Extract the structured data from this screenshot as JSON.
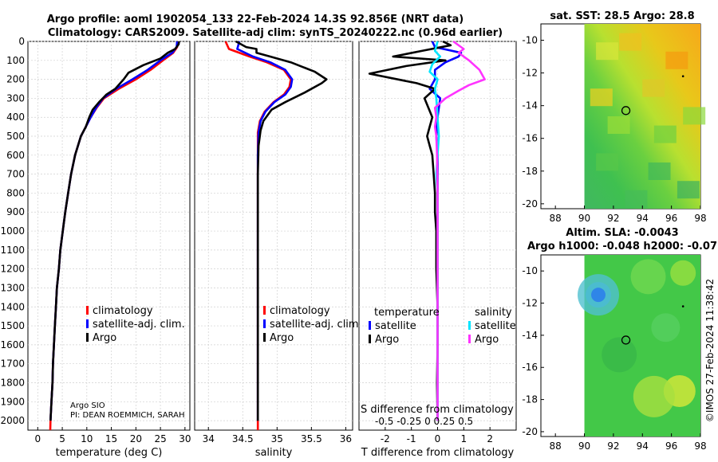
{
  "title_line1": "Argo profile: aoml 1902054_133 22-Feb-2024 14.3S 92.856E (NRT data)",
  "title_line2": "Climatology: CARS2009. Satellite-adj clim: synTS_20240222.nc (0.96d earlier)",
  "map1_title": "sat. SST: 28.5 Argo: 28.8",
  "map2_title1": "Altim. SLA: -0.0043",
  "map2_title2": "Argo h1000: -0.048 h2000: -0.07",
  "credit": "©IMOS 27-Feb-2024 11:38:42",
  "source_label": "Argo SIO",
  "pi_label": "PI: DEAN ROEMMICH, SARAH",
  "colors": {
    "climatology": "#ff0000",
    "satellite": "#0000ff",
    "argo": "#000000",
    "sat_diff_temp": "#0000ff",
    "sat_diff_sal": "#00e5ff",
    "argo_diff_sal": "#ff33ff"
  },
  "map_ticks": {
    "lat": [
      "-10",
      "-12",
      "-14",
      "-16",
      "-18",
      "-20"
    ],
    "lon": [
      "88",
      "90",
      "92",
      "94",
      "96",
      "98"
    ]
  },
  "chart_data": [
    {
      "type": "line",
      "name": "temperature",
      "xlabel": "temperature (deg C)",
      "xlim": [
        -2,
        31
      ],
      "xticks": [
        0,
        5,
        10,
        15,
        20,
        25,
        30
      ],
      "ylim": [
        0,
        2050
      ],
      "yticks": [
        0,
        100,
        200,
        300,
        400,
        500,
        600,
        700,
        800,
        900,
        1000,
        1100,
        1200,
        1300,
        1400,
        1500,
        1600,
        1700,
        1800,
        1900,
        2000
      ],
      "legend": [
        "climatology",
        "satellite-adj. clim.",
        "Argo"
      ],
      "series": [
        {
          "name": "climatology",
          "color": "red",
          "points": [
            [
              28.6,
              0
            ],
            [
              28.4,
              30
            ],
            [
              27.6,
              60
            ],
            [
              25.5,
              100
            ],
            [
              23,
              150
            ],
            [
              20,
              200
            ],
            [
              16.5,
              250
            ],
            [
              13.5,
              300
            ],
            [
              12,
              350
            ],
            [
              10.8,
              400
            ],
            [
              9.8,
              450
            ],
            [
              8.8,
              500
            ],
            [
              7.6,
              600
            ],
            [
              6.8,
              700
            ],
            [
              6.2,
              800
            ],
            [
              5.6,
              900
            ],
            [
              5.1,
              1000
            ],
            [
              4.6,
              1100
            ],
            [
              4.3,
              1200
            ],
            [
              3.9,
              1300
            ],
            [
              3.7,
              1400
            ],
            [
              3.5,
              1500
            ],
            [
              3.3,
              1600
            ],
            [
              3.1,
              1700
            ],
            [
              3,
              1800
            ],
            [
              2.8,
              1900
            ],
            [
              2.6,
              2000
            ],
            [
              2.55,
              2050
            ]
          ]
        },
        {
          "name": "satellite-adj. clim.",
          "color": "blue",
          "points": [
            [
              28.4,
              0
            ],
            [
              28.3,
              30
            ],
            [
              27.4,
              60
            ],
            [
              25,
              100
            ],
            [
              22.4,
              150
            ],
            [
              19.3,
              200
            ],
            [
              16,
              250
            ],
            [
              13.3,
              300
            ],
            [
              11.9,
              350
            ],
            [
              10.8,
              400
            ],
            [
              9.8,
              450
            ],
            [
              8.8,
              500
            ],
            [
              7.6,
              600
            ],
            [
              6.8,
              700
            ],
            [
              6.2,
              800
            ],
            [
              5.6,
              900
            ],
            [
              5.1,
              1000
            ],
            [
              4.6,
              1100
            ],
            [
              4.3,
              1200
            ],
            [
              3.9,
              1300
            ],
            [
              3.7,
              1400
            ],
            [
              3.5,
              1500
            ],
            [
              3.3,
              1600
            ],
            [
              3.1,
              1700
            ],
            [
              3,
              1800
            ],
            [
              2.8,
              1900
            ],
            [
              2.6,
              2000
            ]
          ]
        },
        {
          "name": "Argo",
          "color": "black",
          "points": [
            [
              28.8,
              0
            ],
            [
              28.7,
              15
            ],
            [
              28,
              40
            ],
            [
              26.5,
              60
            ],
            [
              25,
              90
            ],
            [
              21.5,
              125
            ],
            [
              18.5,
              165
            ],
            [
              17.5,
              200
            ],
            [
              15.8,
              250
            ],
            [
              14,
              280
            ],
            [
              12.5,
              320
            ],
            [
              11.2,
              360
            ],
            [
              10.5,
              400
            ],
            [
              9.8,
              450
            ],
            [
              8.8,
              500
            ],
            [
              7.6,
              600
            ],
            [
              6.8,
              700
            ],
            [
              6.2,
              800
            ],
            [
              5.6,
              900
            ],
            [
              5.1,
              1000
            ],
            [
              4.6,
              1100
            ],
            [
              4.3,
              1200
            ],
            [
              3.9,
              1300
            ],
            [
              3.7,
              1400
            ],
            [
              3.5,
              1500
            ],
            [
              3.3,
              1600
            ],
            [
              3.1,
              1700
            ],
            [
              3,
              1800
            ],
            [
              2.8,
              1900
            ],
            [
              2.6,
              2000
            ]
          ]
        }
      ]
    },
    {
      "type": "line",
      "name": "salinity",
      "xlabel": "salinity",
      "xlim": [
        33.8,
        36.1
      ],
      "xticks": [
        34,
        34.5,
        35,
        35.5,
        36
      ],
      "ylim": [
        0,
        2050
      ],
      "legend": [
        "climatology",
        "satellite-adj. clim.",
        "Argo"
      ],
      "series": [
        {
          "name": "climatology",
          "color": "red",
          "points": [
            [
              34.25,
              0
            ],
            [
              34.3,
              40
            ],
            [
              34.6,
              80
            ],
            [
              34.85,
              110
            ],
            [
              35.1,
              150
            ],
            [
              35.2,
              200
            ],
            [
              35.18,
              240
            ],
            [
              35.1,
              280
            ],
            [
              34.95,
              320
            ],
            [
              34.82,
              370
            ],
            [
              34.75,
              420
            ],
            [
              34.72,
              480
            ],
            [
              34.72,
              600
            ],
            [
              34.72,
              800
            ],
            [
              34.72,
              1000
            ],
            [
              34.72,
              1200
            ],
            [
              34.72,
              1400
            ],
            [
              34.72,
              1600
            ],
            [
              34.72,
              1800
            ],
            [
              34.72,
              2000
            ],
            [
              34.72,
              2050
            ]
          ]
        },
        {
          "name": "satellite-adj. clim.",
          "color": "blue",
          "points": [
            [
              34.45,
              0
            ],
            [
              34.42,
              40
            ],
            [
              34.65,
              80
            ],
            [
              34.9,
              110
            ],
            [
              35.12,
              150
            ],
            [
              35.22,
              200
            ],
            [
              35.2,
              240
            ],
            [
              35.12,
              280
            ],
            [
              34.96,
              320
            ],
            [
              34.83,
              370
            ],
            [
              34.76,
              420
            ],
            [
              34.73,
              480
            ],
            [
              34.72,
              600
            ],
            [
              34.72,
              800
            ],
            [
              34.72,
              1000
            ],
            [
              34.72,
              1200
            ],
            [
              34.72,
              1400
            ],
            [
              34.72,
              1600
            ],
            [
              34.72,
              1800
            ],
            [
              34.72,
              2000
            ]
          ]
        },
        {
          "name": "Argo",
          "color": "black",
          "points": [
            [
              34.4,
              0
            ],
            [
              34.55,
              30
            ],
            [
              34.7,
              40
            ],
            [
              34.7,
              60
            ],
            [
              34.9,
              80
            ],
            [
              35.2,
              110
            ],
            [
              35.55,
              160
            ],
            [
              35.72,
              200
            ],
            [
              35.65,
              220
            ],
            [
              35.4,
              270
            ],
            [
              35.12,
              320
            ],
            [
              34.92,
              360
            ],
            [
              34.8,
              420
            ],
            [
              34.76,
              470
            ],
            [
              34.73,
              550
            ],
            [
              34.72,
              700
            ],
            [
              34.72,
              900
            ],
            [
              34.72,
              1100
            ],
            [
              34.72,
              1300
            ],
            [
              34.72,
              1500
            ],
            [
              34.72,
              1700
            ],
            [
              34.72,
              1900
            ],
            [
              34.72,
              2000
            ]
          ]
        }
      ]
    },
    {
      "type": "line",
      "name": "difference",
      "xlabel": "T difference from climatology",
      "top_label": "S difference from climatology",
      "xlim": [
        -3,
        3
      ],
      "xticks": [
        -2,
        -1,
        0,
        1,
        2
      ],
      "sal_ticks_label": "-0.5 -0.25   0   0.25  0.5",
      "ylim": [
        0,
        2050
      ],
      "legend_headers": [
        "temperature",
        "salinity"
      ],
      "legend_left": [
        "satellite",
        "Argo"
      ],
      "legend_right": [
        "satellite",
        "Argo"
      ],
      "series": [
        {
          "name": "T satellite diff",
          "color": "blue",
          "points": [
            [
              -0.2,
              0
            ],
            [
              -0.1,
              30
            ],
            [
              0.9,
              60
            ],
            [
              0.8,
              80
            ],
            [
              0.3,
              110
            ],
            [
              -0.1,
              150
            ],
            [
              -0.1,
              200
            ],
            [
              -0.3,
              250
            ],
            [
              0.1,
              300
            ],
            [
              0,
              400
            ],
            [
              -0.05,
              500
            ],
            [
              0,
              600
            ],
            [
              0,
              800
            ],
            [
              0,
              1000
            ],
            [
              0,
              1200
            ],
            [
              0,
              1400
            ],
            [
              0,
              1600
            ],
            [
              0,
              1800
            ],
            [
              0,
              2000
            ]
          ]
        },
        {
          "name": "T Argo diff",
          "color": "black",
          "points": [
            [
              0.2,
              0
            ],
            [
              0.5,
              20
            ],
            [
              -0.6,
              50
            ],
            [
              -1.7,
              80
            ],
            [
              0.3,
              100
            ],
            [
              -1.2,
              130
            ],
            [
              -2.6,
              170
            ],
            [
              -0.8,
              220
            ],
            [
              -0.1,
              250
            ],
            [
              -0.5,
              300
            ],
            [
              -0.2,
              400
            ],
            [
              -0.3,
              450
            ],
            [
              -0.4,
              500
            ],
            [
              -0.3,
              550
            ],
            [
              -0.2,
              600
            ],
            [
              -0.15,
              700
            ],
            [
              -0.1,
              800
            ],
            [
              -0.1,
              900
            ],
            [
              -0.05,
              1000
            ],
            [
              -0.05,
              1200
            ],
            [
              0,
              1400
            ],
            [
              0,
              1600
            ],
            [
              -0.02,
              1800
            ],
            [
              0,
              2000
            ]
          ]
        },
        {
          "name": "S satellite diff",
          "color": "cyan",
          "points": [
            [
              0,
              0
            ],
            [
              -0.1,
              50
            ],
            [
              0.1,
              80
            ],
            [
              -0.2,
              120
            ],
            [
              -0.3,
              160
            ],
            [
              0,
              200
            ],
            [
              -0.1,
              250
            ],
            [
              -0.05,
              300
            ],
            [
              0,
              400
            ],
            [
              0.05,
              500
            ],
            [
              0,
              600
            ],
            [
              -0.05,
              700
            ],
            [
              0,
              800
            ],
            [
              0,
              1000
            ],
            [
              0,
              1200
            ],
            [
              0,
              1400
            ],
            [
              0,
              1600
            ],
            [
              0,
              1800
            ],
            [
              0,
              2000
            ]
          ]
        },
        {
          "name": "S Argo diff",
          "color": "magenta",
          "points": [
            [
              0.6,
              0
            ],
            [
              1,
              40
            ],
            [
              0.8,
              60
            ],
            [
              1.2,
              100
            ],
            [
              1.6,
              150
            ],
            [
              1.8,
              200
            ],
            [
              1.2,
              230
            ],
            [
              0.8,
              260
            ],
            [
              0.3,
              300
            ],
            [
              -0.1,
              350
            ],
            [
              -0.05,
              400
            ],
            [
              -0.1,
              450
            ],
            [
              -0.05,
              500
            ],
            [
              -0.02,
              600
            ],
            [
              0,
              800
            ],
            [
              0,
              1000
            ],
            [
              0,
              1200
            ],
            [
              0,
              1400
            ],
            [
              0,
              1600
            ],
            [
              0,
              1800
            ],
            [
              0,
              2000
            ]
          ]
        }
      ]
    }
  ]
}
